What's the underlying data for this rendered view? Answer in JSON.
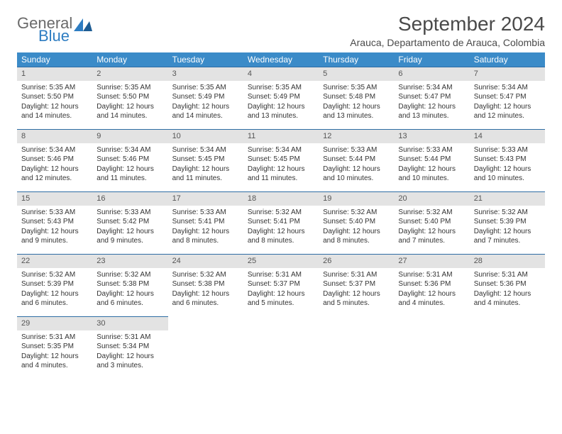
{
  "logo": {
    "general": "General",
    "blue": "Blue"
  },
  "title": "September 2024",
  "location": "Arauca, Departamento de Arauca, Colombia",
  "colors": {
    "header_bg": "#3b8bc8",
    "header_text": "#ffffff",
    "daynum_bg": "#e3e3e3",
    "row_divider": "#2e6da4",
    "text": "#333333",
    "title_text": "#4a4a4a",
    "logo_gray": "#6a6a6a",
    "logo_blue": "#2e7dc2",
    "background": "#ffffff"
  },
  "layout": {
    "columns": 7,
    "rows": 5,
    "font_family": "Arial",
    "cell_fontsize_pt": 7.5,
    "title_fontsize_pt": 21,
    "location_fontsize_pt": 10.5,
    "header_fontsize_pt": 9
  },
  "weekdays": [
    "Sunday",
    "Monday",
    "Tuesday",
    "Wednesday",
    "Thursday",
    "Friday",
    "Saturday"
  ],
  "days": [
    {
      "n": "1",
      "sr": "Sunrise: 5:35 AM",
      "ss": "Sunset: 5:50 PM",
      "dl1": "Daylight: 12 hours",
      "dl2": "and 14 minutes."
    },
    {
      "n": "2",
      "sr": "Sunrise: 5:35 AM",
      "ss": "Sunset: 5:50 PM",
      "dl1": "Daylight: 12 hours",
      "dl2": "and 14 minutes."
    },
    {
      "n": "3",
      "sr": "Sunrise: 5:35 AM",
      "ss": "Sunset: 5:49 PM",
      "dl1": "Daylight: 12 hours",
      "dl2": "and 14 minutes."
    },
    {
      "n": "4",
      "sr": "Sunrise: 5:35 AM",
      "ss": "Sunset: 5:49 PM",
      "dl1": "Daylight: 12 hours",
      "dl2": "and 13 minutes."
    },
    {
      "n": "5",
      "sr": "Sunrise: 5:35 AM",
      "ss": "Sunset: 5:48 PM",
      "dl1": "Daylight: 12 hours",
      "dl2": "and 13 minutes."
    },
    {
      "n": "6",
      "sr": "Sunrise: 5:34 AM",
      "ss": "Sunset: 5:47 PM",
      "dl1": "Daylight: 12 hours",
      "dl2": "and 13 minutes."
    },
    {
      "n": "7",
      "sr": "Sunrise: 5:34 AM",
      "ss": "Sunset: 5:47 PM",
      "dl1": "Daylight: 12 hours",
      "dl2": "and 12 minutes."
    },
    {
      "n": "8",
      "sr": "Sunrise: 5:34 AM",
      "ss": "Sunset: 5:46 PM",
      "dl1": "Daylight: 12 hours",
      "dl2": "and 12 minutes."
    },
    {
      "n": "9",
      "sr": "Sunrise: 5:34 AM",
      "ss": "Sunset: 5:46 PM",
      "dl1": "Daylight: 12 hours",
      "dl2": "and 11 minutes."
    },
    {
      "n": "10",
      "sr": "Sunrise: 5:34 AM",
      "ss": "Sunset: 5:45 PM",
      "dl1": "Daylight: 12 hours",
      "dl2": "and 11 minutes."
    },
    {
      "n": "11",
      "sr": "Sunrise: 5:34 AM",
      "ss": "Sunset: 5:45 PM",
      "dl1": "Daylight: 12 hours",
      "dl2": "and 11 minutes."
    },
    {
      "n": "12",
      "sr": "Sunrise: 5:33 AM",
      "ss": "Sunset: 5:44 PM",
      "dl1": "Daylight: 12 hours",
      "dl2": "and 10 minutes."
    },
    {
      "n": "13",
      "sr": "Sunrise: 5:33 AM",
      "ss": "Sunset: 5:44 PM",
      "dl1": "Daylight: 12 hours",
      "dl2": "and 10 minutes."
    },
    {
      "n": "14",
      "sr": "Sunrise: 5:33 AM",
      "ss": "Sunset: 5:43 PM",
      "dl1": "Daylight: 12 hours",
      "dl2": "and 10 minutes."
    },
    {
      "n": "15",
      "sr": "Sunrise: 5:33 AM",
      "ss": "Sunset: 5:43 PM",
      "dl1": "Daylight: 12 hours",
      "dl2": "and 9 minutes."
    },
    {
      "n": "16",
      "sr": "Sunrise: 5:33 AM",
      "ss": "Sunset: 5:42 PM",
      "dl1": "Daylight: 12 hours",
      "dl2": "and 9 minutes."
    },
    {
      "n": "17",
      "sr": "Sunrise: 5:33 AM",
      "ss": "Sunset: 5:41 PM",
      "dl1": "Daylight: 12 hours",
      "dl2": "and 8 minutes."
    },
    {
      "n": "18",
      "sr": "Sunrise: 5:32 AM",
      "ss": "Sunset: 5:41 PM",
      "dl1": "Daylight: 12 hours",
      "dl2": "and 8 minutes."
    },
    {
      "n": "19",
      "sr": "Sunrise: 5:32 AM",
      "ss": "Sunset: 5:40 PM",
      "dl1": "Daylight: 12 hours",
      "dl2": "and 8 minutes."
    },
    {
      "n": "20",
      "sr": "Sunrise: 5:32 AM",
      "ss": "Sunset: 5:40 PM",
      "dl1": "Daylight: 12 hours",
      "dl2": "and 7 minutes."
    },
    {
      "n": "21",
      "sr": "Sunrise: 5:32 AM",
      "ss": "Sunset: 5:39 PM",
      "dl1": "Daylight: 12 hours",
      "dl2": "and 7 minutes."
    },
    {
      "n": "22",
      "sr": "Sunrise: 5:32 AM",
      "ss": "Sunset: 5:39 PM",
      "dl1": "Daylight: 12 hours",
      "dl2": "and 6 minutes."
    },
    {
      "n": "23",
      "sr": "Sunrise: 5:32 AM",
      "ss": "Sunset: 5:38 PM",
      "dl1": "Daylight: 12 hours",
      "dl2": "and 6 minutes."
    },
    {
      "n": "24",
      "sr": "Sunrise: 5:32 AM",
      "ss": "Sunset: 5:38 PM",
      "dl1": "Daylight: 12 hours",
      "dl2": "and 6 minutes."
    },
    {
      "n": "25",
      "sr": "Sunrise: 5:31 AM",
      "ss": "Sunset: 5:37 PM",
      "dl1": "Daylight: 12 hours",
      "dl2": "and 5 minutes."
    },
    {
      "n": "26",
      "sr": "Sunrise: 5:31 AM",
      "ss": "Sunset: 5:37 PM",
      "dl1": "Daylight: 12 hours",
      "dl2": "and 5 minutes."
    },
    {
      "n": "27",
      "sr": "Sunrise: 5:31 AM",
      "ss": "Sunset: 5:36 PM",
      "dl1": "Daylight: 12 hours",
      "dl2": "and 4 minutes."
    },
    {
      "n": "28",
      "sr": "Sunrise: 5:31 AM",
      "ss": "Sunset: 5:36 PM",
      "dl1": "Daylight: 12 hours",
      "dl2": "and 4 minutes."
    },
    {
      "n": "29",
      "sr": "Sunrise: 5:31 AM",
      "ss": "Sunset: 5:35 PM",
      "dl1": "Daylight: 12 hours",
      "dl2": "and 4 minutes."
    },
    {
      "n": "30",
      "sr": "Sunrise: 5:31 AM",
      "ss": "Sunset: 5:34 PM",
      "dl1": "Daylight: 12 hours",
      "dl2": "and 3 minutes."
    }
  ]
}
